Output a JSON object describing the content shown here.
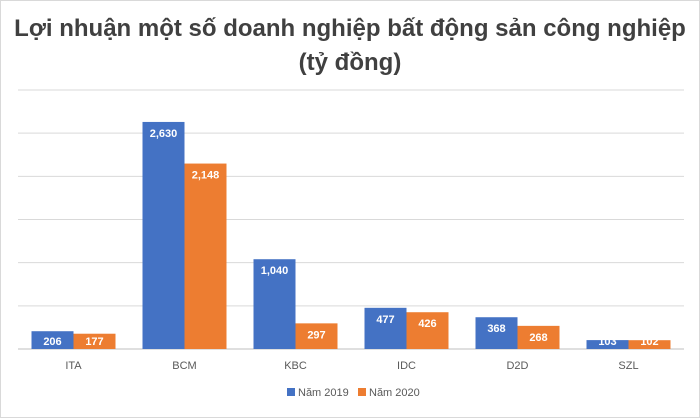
{
  "chart_data": {
    "type": "bar",
    "title": "Lợi nhuận một số doanh nghiệp bất động sản công nghiệp (tỷ đồng)",
    "xlabel": "",
    "ylabel": "",
    "categories": [
      "ITA",
      "BCM",
      "KBC",
      "IDC",
      "D2D",
      "SZL"
    ],
    "series": [
      {
        "name": "Năm 2019",
        "color": "#4472c4",
        "values": [
          206,
          2630,
          1040,
          477,
          368,
          103
        ],
        "labels": [
          "206",
          "2,630",
          "1,040",
          "477",
          "368",
          "103"
        ]
      },
      {
        "name": "Năm 2020",
        "color": "#ed7d31",
        "values": [
          177,
          2148,
          297,
          426,
          268,
          102
        ],
        "labels": [
          "177",
          "2,148",
          "297",
          "426",
          "268",
          "102"
        ]
      }
    ],
    "ylim": [
      0,
      3000
    ],
    "grid": true,
    "legend": "bottom"
  }
}
